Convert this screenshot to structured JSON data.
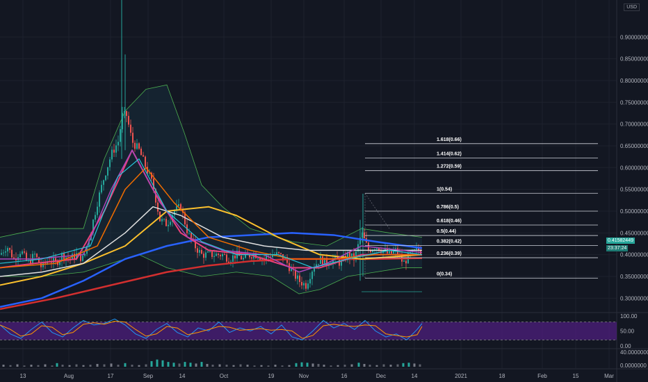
{
  "currency": "USD",
  "current_price_label": "0.41582449",
  "countdown": "23:37:24",
  "colors": {
    "background": "#131722",
    "up": "#26a69a",
    "down": "#ef5350",
    "price_tag": "#26a69a",
    "countdown_tag": "#1e7a73",
    "rsi_band": "#4a1e78"
  },
  "chart_data": {
    "type": "candlestick",
    "x_ticks": [
      "13",
      "Aug",
      "17",
      "Sep",
      "14",
      "Oct",
      "19",
      "Nov",
      "16",
      "Dec",
      "14",
      "2021",
      "18",
      "Feb",
      "15",
      "Mar"
    ],
    "price_axis": {
      "ticks": [
        "0.90000000",
        "0.85000000",
        "0.80000000",
        "0.75000000",
        "0.70000000",
        "0.65000000",
        "0.60000000",
        "0.55000000",
        "0.50000000",
        "0.45000000",
        "0.40000000",
        "0.35000000",
        "0.30000000"
      ],
      "range": [
        0.275,
        0.985
      ]
    },
    "rsi_axis": {
      "ticks": [
        "100.00",
        "50.00",
        "0.00"
      ],
      "band": [
        20,
        80
      ]
    },
    "volume_axis": {
      "ticks": [
        "40.0000000",
        "0.0000000"
      ]
    },
    "fib_levels": [
      {
        "label": "1.618(0.66)",
        "value": 0.655
      },
      {
        "label": "1.414(0.62)",
        "value": 0.622
      },
      {
        "label": "1.272(0.59)",
        "value": 0.593
      },
      {
        "label": "1(0.54)",
        "value": 0.541
      },
      {
        "label": "0.786(0.5)",
        "value": 0.5
      },
      {
        "label": "0.618(0.46)",
        "value": 0.468
      },
      {
        "label": "0.5(0.44)",
        "value": 0.444
      },
      {
        "label": "0.382(0.42)",
        "value": 0.421
      },
      {
        "label": "0.236(0.39)",
        "value": 0.393
      },
      {
        "label": "0(0.34)",
        "value": 0.346
      }
    ],
    "price_path": [
      [
        0,
        0.4
      ],
      [
        10,
        0.42
      ],
      [
        20,
        0.39
      ],
      [
        30,
        0.41
      ],
      [
        40,
        0.38
      ],
      [
        50,
        0.4
      ],
      [
        60,
        0.37
      ],
      [
        70,
        0.39
      ],
      [
        80,
        0.38
      ],
      [
        90,
        0.4
      ],
      [
        100,
        0.39
      ],
      [
        110,
        0.4
      ],
      [
        120,
        0.39
      ],
      [
        130,
        0.45
      ],
      [
        140,
        0.52
      ],
      [
        150,
        0.58
      ],
      [
        160,
        0.63
      ],
      [
        170,
        0.66
      ],
      [
        176,
        0.72
      ],
      [
        182,
        0.72
      ],
      [
        190,
        0.66
      ],
      [
        200,
        0.64
      ],
      [
        210,
        0.6
      ],
      [
        220,
        0.56
      ],
      [
        230,
        0.48
      ],
      [
        240,
        0.47
      ],
      [
        250,
        0.5
      ],
      [
        260,
        0.51
      ],
      [
        270,
        0.45
      ],
      [
        280,
        0.42
      ],
      [
        290,
        0.4
      ],
      [
        300,
        0.4
      ],
      [
        310,
        0.4
      ],
      [
        320,
        0.4
      ],
      [
        330,
        0.39
      ],
      [
        340,
        0.4
      ],
      [
        350,
        0.39
      ],
      [
        360,
        0.4
      ],
      [
        370,
        0.4
      ],
      [
        380,
        0.39
      ],
      [
        390,
        0.4
      ],
      [
        400,
        0.4
      ],
      [
        410,
        0.39
      ],
      [
        420,
        0.36
      ],
      [
        430,
        0.34
      ],
      [
        440,
        0.33
      ],
      [
        450,
        0.37
      ],
      [
        460,
        0.39
      ],
      [
        470,
        0.38
      ],
      [
        480,
        0.39
      ],
      [
        490,
        0.38
      ],
      [
        500,
        0.4
      ],
      [
        510,
        0.39
      ],
      [
        520,
        0.45
      ],
      [
        530,
        0.41
      ],
      [
        540,
        0.42
      ],
      [
        550,
        0.41
      ],
      [
        560,
        0.4
      ],
      [
        570,
        0.41
      ],
      [
        580,
        0.38
      ],
      [
        590,
        0.4
      ],
      [
        600,
        0.41
      ],
      [
        607,
        0.41
      ]
    ],
    "wick_spikes": [
      {
        "x": 175,
        "high": 0.985,
        "low": 0.62
      },
      {
        "x": 180,
        "high": 0.86,
        "low": 0.64
      },
      {
        "x": 522,
        "high": 0.54,
        "low": 0.35
      },
      {
        "x": 518,
        "high": 0.48,
        "low": 0.34
      }
    ],
    "moving_averages": [
      {
        "color": "#2962ff",
        "points": [
          [
            0,
            0.28
          ],
          [
            60,
            0.3
          ],
          [
            120,
            0.34
          ],
          [
            180,
            0.39
          ],
          [
            240,
            0.42
          ],
          [
            300,
            0.44
          ],
          [
            360,
            0.445
          ],
          [
            420,
            0.45
          ],
          [
            480,
            0.445
          ],
          [
            540,
            0.43
          ],
          [
            607,
            0.415
          ]
        ],
        "width": 2.5
      },
      {
        "color": "#d32f2f",
        "points": [
          [
            0,
            0.275
          ],
          [
            80,
            0.3
          ],
          [
            160,
            0.33
          ],
          [
            240,
            0.36
          ],
          [
            300,
            0.375
          ],
          [
            360,
            0.385
          ],
          [
            420,
            0.39
          ],
          [
            480,
            0.39
          ],
          [
            540,
            0.39
          ],
          [
            607,
            0.392
          ]
        ],
        "width": 2.5
      },
      {
        "color": "#fbc02d",
        "points": [
          [
            0,
            0.33
          ],
          [
            60,
            0.35
          ],
          [
            120,
            0.38
          ],
          [
            180,
            0.42
          ],
          [
            240,
            0.5
          ],
          [
            300,
            0.51
          ],
          [
            340,
            0.49
          ],
          [
            400,
            0.44
          ],
          [
            460,
            0.4
          ],
          [
            520,
            0.39
          ],
          [
            607,
            0.4
          ]
        ],
        "width": 2
      },
      {
        "color": "#e0e0e0",
        "points": [
          [
            0,
            0.35
          ],
          [
            60,
            0.36
          ],
          [
            120,
            0.38
          ],
          [
            180,
            0.45
          ],
          [
            220,
            0.51
          ],
          [
            260,
            0.49
          ],
          [
            320,
            0.44
          ],
          [
            380,
            0.42
          ],
          [
            440,
            0.41
          ],
          [
            500,
            0.41
          ],
          [
            607,
            0.41
          ]
        ],
        "width": 1.5
      },
      {
        "color": "#ec407a",
        "points": [
          [
            0,
            0.37
          ],
          [
            50,
            0.38
          ],
          [
            110,
            0.39
          ],
          [
            150,
            0.5
          ],
          [
            190,
            0.64
          ],
          [
            220,
            0.55
          ],
          [
            260,
            0.45
          ],
          [
            300,
            0.41
          ],
          [
            360,
            0.4
          ],
          [
            420,
            0.37
          ],
          [
            460,
            0.37
          ],
          [
            520,
            0.4
          ],
          [
            607,
            0.4
          ]
        ],
        "width": 2
      },
      {
        "color": "#ab47bc",
        "points": [
          [
            0,
            0.39
          ],
          [
            50,
            0.39
          ],
          [
            120,
            0.4
          ],
          [
            160,
            0.55
          ],
          [
            190,
            0.64
          ],
          [
            230,
            0.52
          ],
          [
            270,
            0.44
          ],
          [
            320,
            0.41
          ],
          [
            380,
            0.4
          ],
          [
            430,
            0.36
          ],
          [
            470,
            0.38
          ],
          [
            520,
            0.42
          ],
          [
            607,
            0.405
          ]
        ],
        "width": 1.5
      },
      {
        "color": "#ef6c00",
        "points": [
          [
            0,
            0.37
          ],
          [
            80,
            0.38
          ],
          [
            140,
            0.42
          ],
          [
            180,
            0.55
          ],
          [
            210,
            0.6
          ],
          [
            250,
            0.52
          ],
          [
            300,
            0.44
          ],
          [
            360,
            0.41
          ],
          [
            420,
            0.39
          ],
          [
            480,
            0.39
          ],
          [
            540,
            0.4
          ],
          [
            607,
            0.4
          ]
        ],
        "width": 1.5
      },
      {
        "color": "#26c6da",
        "points": [
          [
            0,
            0.38
          ],
          [
            60,
            0.39
          ],
          [
            130,
            0.42
          ],
          [
            170,
            0.58
          ],
          [
            200,
            0.62
          ],
          [
            240,
            0.5
          ],
          [
            290,
            0.43
          ],
          [
            340,
            0.4
          ],
          [
            400,
            0.4
          ],
          [
            450,
            0.37
          ],
          [
            500,
            0.39
          ],
          [
            560,
            0.41
          ],
          [
            607,
            0.4
          ]
        ],
        "width": 1.2
      }
    ],
    "bollinger_upper": [
      [
        0,
        0.44
      ],
      [
        60,
        0.46
      ],
      [
        120,
        0.46
      ],
      [
        150,
        0.62
      ],
      [
        180,
        0.73
      ],
      [
        210,
        0.78
      ],
      [
        240,
        0.79
      ],
      [
        265,
        0.68
      ],
      [
        290,
        0.56
      ],
      [
        320,
        0.51
      ],
      [
        360,
        0.46
      ],
      [
        420,
        0.43
      ],
      [
        470,
        0.42
      ],
      [
        520,
        0.46
      ],
      [
        560,
        0.45
      ],
      [
        607,
        0.44
      ]
    ],
    "bollinger_lower": [
      [
        0,
        0.35
      ],
      [
        60,
        0.35
      ],
      [
        120,
        0.36
      ],
      [
        160,
        0.38
      ],
      [
        200,
        0.4
      ],
      [
        240,
        0.37
      ],
      [
        290,
        0.35
      ],
      [
        340,
        0.36
      ],
      [
        390,
        0.35
      ],
      [
        430,
        0.31
      ],
      [
        460,
        0.32
      ],
      [
        500,
        0.35
      ],
      [
        540,
        0.36
      ],
      [
        580,
        0.37
      ],
      [
        607,
        0.37
      ]
    ],
    "rsi_path": [
      [
        0,
        70
      ],
      [
        15,
        40
      ],
      [
        30,
        25
      ],
      [
        45,
        55
      ],
      [
        60,
        80
      ],
      [
        75,
        45
      ],
      [
        90,
        30
      ],
      [
        105,
        60
      ],
      [
        120,
        85
      ],
      [
        135,
        70
      ],
      [
        150,
        75
      ],
      [
        165,
        90
      ],
      [
        180,
        70
      ],
      [
        195,
        40
      ],
      [
        210,
        25
      ],
      [
        225,
        55
      ],
      [
        240,
        75
      ],
      [
        255,
        45
      ],
      [
        270,
        30
      ],
      [
        285,
        60
      ],
      [
        300,
        50
      ],
      [
        315,
        80
      ],
      [
        330,
        45
      ],
      [
        345,
        60
      ],
      [
        360,
        50
      ],
      [
        375,
        65
      ],
      [
        390,
        40
      ],
      [
        405,
        70
      ],
      [
        420,
        30
      ],
      [
        435,
        20
      ],
      [
        450,
        50
      ],
      [
        465,
        85
      ],
      [
        480,
        60
      ],
      [
        495,
        75
      ],
      [
        510,
        55
      ],
      [
        525,
        85
      ],
      [
        540,
        50
      ],
      [
        555,
        30
      ],
      [
        570,
        40
      ],
      [
        585,
        20
      ],
      [
        600,
        55
      ],
      [
        607,
        75
      ]
    ],
    "volume_bars": [
      [
        5,
        5
      ],
      [
        15,
        4
      ],
      [
        25,
        6
      ],
      [
        35,
        3
      ],
      [
        45,
        5
      ],
      [
        55,
        4
      ],
      [
        65,
        6
      ],
      [
        75,
        3
      ],
      [
        82,
        9
      ],
      [
        90,
        5
      ],
      [
        100,
        4
      ],
      [
        110,
        6
      ],
      [
        120,
        4
      ],
      [
        130,
        5
      ],
      [
        140,
        7
      ],
      [
        150,
        6
      ],
      [
        160,
        8
      ],
      [
        170,
        5
      ],
      [
        180,
        9
      ],
      [
        190,
        5
      ],
      [
        200,
        4
      ],
      [
        210,
        6
      ],
      [
        218,
        14
      ],
      [
        226,
        18
      ],
      [
        234,
        16
      ],
      [
        242,
        12
      ],
      [
        250,
        10
      ],
      [
        258,
        8
      ],
      [
        266,
        12
      ],
      [
        274,
        10
      ],
      [
        282,
        8
      ],
      [
        290,
        12
      ],
      [
        298,
        7
      ],
      [
        306,
        5
      ],
      [
        316,
        6
      ],
      [
        326,
        5
      ],
      [
        336,
        4
      ],
      [
        346,
        6
      ],
      [
        356,
        5
      ],
      [
        366,
        3
      ],
      [
        376,
        4
      ],
      [
        386,
        3
      ],
      [
        396,
        5
      ],
      [
        406,
        3
      ],
      [
        416,
        4
      ],
      [
        426,
        9
      ],
      [
        434,
        11
      ],
      [
        442,
        10
      ],
      [
        450,
        8
      ],
      [
        458,
        7
      ],
      [
        466,
        5
      ],
      [
        476,
        3
      ],
      [
        486,
        4
      ],
      [
        496,
        5
      ],
      [
        506,
        6
      ],
      [
        516,
        10
      ],
      [
        524,
        7
      ],
      [
        532,
        5
      ],
      [
        542,
        4
      ],
      [
        552,
        6
      ],
      [
        562,
        5
      ],
      [
        572,
        6
      ],
      [
        580,
        9
      ],
      [
        588,
        10
      ],
      [
        596,
        8
      ],
      [
        604,
        6
      ]
    ]
  }
}
